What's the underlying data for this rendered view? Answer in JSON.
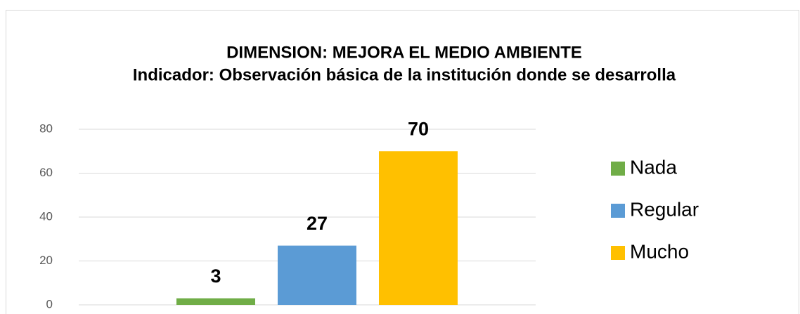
{
  "chart_data": {
    "type": "bar",
    "title": "DIMENSION: MEJORA EL MEDIO AMBIENTE",
    "subtitle": "Indicador: Observación básica de la institución donde se desarrolla",
    "categories": [
      null
    ],
    "series": [
      {
        "name": "Nada",
        "color": "#70ad47",
        "values": [
          3
        ]
      },
      {
        "name": "Regular",
        "color": "#5b9bd5",
        "values": [
          27
        ]
      },
      {
        "name": "Mucho",
        "color": "#ffc000",
        "values": [
          70
        ]
      }
    ],
    "ylim": [
      0,
      80
    ],
    "yticks": [
      0,
      20,
      40,
      60,
      80
    ],
    "grid": true,
    "legend": "right"
  }
}
